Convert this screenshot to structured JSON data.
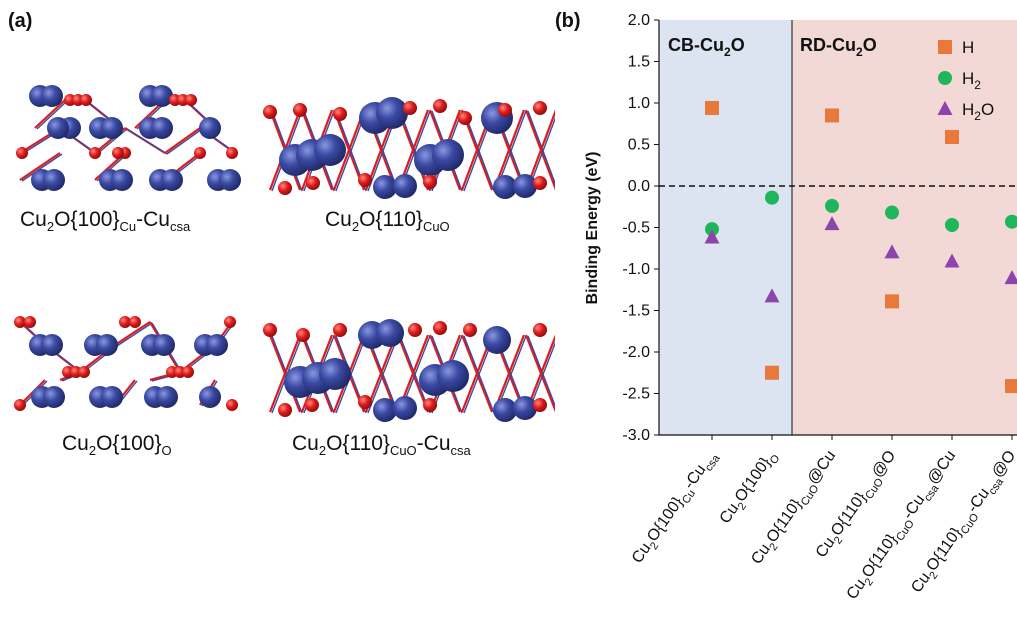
{
  "figure": {
    "panel_a_label": "(a)",
    "panel_b_label": "(b)",
    "structures": [
      {
        "base": "Cu",
        "s1": "2",
        "m1": "O{100}",
        "s2": "Cu",
        "m2": "-Cu",
        "s3": "csa"
      },
      {
        "base": "Cu",
        "s1": "2",
        "m1": "O{110}",
        "s2": "CuO",
        "m2": "",
        "s3": ""
      },
      {
        "base": "Cu",
        "s1": "2",
        "m1": "O{100}",
        "s2": "O",
        "m2": "",
        "s3": ""
      },
      {
        "base": "Cu",
        "s1": "2",
        "m1": "O{110}",
        "s2": "CuO",
        "m2": "-Cu",
        "s3": "csa"
      }
    ],
    "atom_colors": {
      "cu": "#3b4aa3",
      "o": "#e01b1b"
    }
  },
  "chart_data": {
    "type": "scatter",
    "ylabel": "Binding Energy (eV)",
    "ylim": [
      -3.0,
      2.0
    ],
    "yticks": [
      "2.0",
      "1.5",
      "1.0",
      "0.5",
      "0.0",
      "-0.5",
      "-1.0",
      "-1.5",
      "-2.0",
      "-2.5",
      "-3.0"
    ],
    "reference_line_y": 0.0,
    "regions": [
      {
        "label_main": "CB-Cu",
        "label_sub": "2",
        "label_end": "O",
        "categories": [
          0,
          1
        ],
        "color": "#dbe4f0"
      },
      {
        "label_main": "RD-Cu",
        "label_sub": "2",
        "label_end": "O",
        "categories": [
          2,
          3,
          4,
          5
        ],
        "color": "#f2d9d6"
      }
    ],
    "categories": [
      [
        {
          "t": "Cu"
        },
        {
          "t": "2",
          "s": true
        },
        {
          "t": "O{100}"
        },
        {
          "t": "Cu",
          "s": true
        },
        {
          "t": "-Cu"
        },
        {
          "t": "csa",
          "s": true
        }
      ],
      [
        {
          "t": "Cu"
        },
        {
          "t": "2",
          "s": true
        },
        {
          "t": "O{100}"
        },
        {
          "t": "O",
          "s": true
        }
      ],
      [
        {
          "t": "Cu"
        },
        {
          "t": "2",
          "s": true
        },
        {
          "t": "O{110}"
        },
        {
          "t": "CuO",
          "s": true
        },
        {
          "t": "@Cu"
        }
      ],
      [
        {
          "t": "Cu"
        },
        {
          "t": "2",
          "s": true
        },
        {
          "t": "O{110}"
        },
        {
          "t": "CuO",
          "s": true
        },
        {
          "t": "@O"
        }
      ],
      [
        {
          "t": "Cu"
        },
        {
          "t": "2",
          "s": true
        },
        {
          "t": "O{110}"
        },
        {
          "t": "CuO",
          "s": true
        },
        {
          "t": "-Cu"
        },
        {
          "t": "csa",
          "s": true
        },
        {
          "t": "@Cu"
        }
      ],
      [
        {
          "t": "Cu"
        },
        {
          "t": "2",
          "s": true
        },
        {
          "t": "O{110}"
        },
        {
          "t": "CuO",
          "s": true
        },
        {
          "t": "-Cu"
        },
        {
          "t": "csa",
          "s": true
        },
        {
          "t": "@O"
        }
      ]
    ],
    "series": [
      {
        "name": "H",
        "sub": "",
        "name_end": "",
        "marker": "square",
        "color": "#e8793a",
        "values": [
          0.94,
          -2.25,
          0.85,
          -1.39,
          0.59,
          -2.41
        ]
      },
      {
        "name": "H",
        "sub": "2",
        "name_end": "",
        "marker": "circle",
        "color": "#1fb55a",
        "values": [
          -0.52,
          -0.14,
          -0.24,
          -0.32,
          -0.47,
          -0.43
        ]
      },
      {
        "name": "H",
        "sub": "2",
        "name_end": "O",
        "marker": "triangle",
        "color": "#8e44ad",
        "values": [
          -0.62,
          -1.33,
          -0.46,
          -0.8,
          -0.91,
          -1.11
        ]
      }
    ],
    "legend_position": "top-right"
  }
}
